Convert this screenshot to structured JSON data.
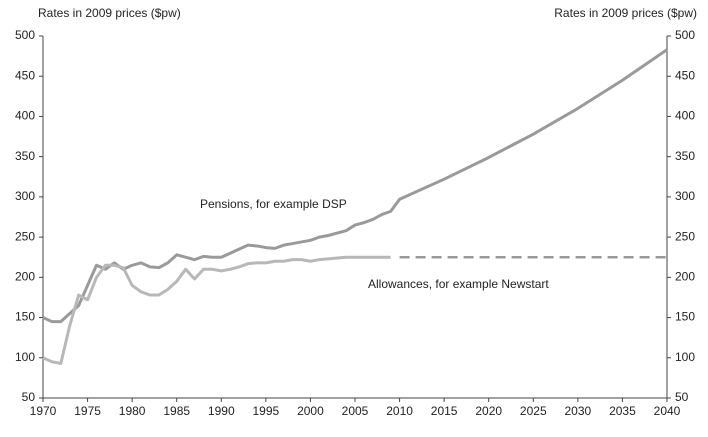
{
  "chart_data": {
    "type": "line",
    "ylabel": "Rates in 2009 prices ($pw)",
    "y2label": "Rates in 2009 prices ($pw)",
    "xlim": [
      1970,
      2040
    ],
    "xticks": [
      1970,
      1975,
      1980,
      1985,
      1990,
      1995,
      2000,
      2005,
      2010,
      2015,
      2020,
      2025,
      2030,
      2035,
      2040
    ],
    "ylim": [
      50,
      500
    ],
    "yticks": [
      50,
      100,
      150,
      200,
      250,
      300,
      350,
      400,
      450,
      500
    ],
    "y2lim": [
      50,
      500
    ],
    "y2ticks": [
      50,
      100,
      150,
      200,
      250,
      300,
      350,
      400,
      450,
      500
    ],
    "series": [
      {
        "name": "Pensions, for example DSP",
        "color": "#9a9a9a",
        "x": [
          1970,
          1971,
          1972,
          1973,
          1974,
          1975,
          1976,
          1977,
          1978,
          1979,
          1980,
          1981,
          1982,
          1983,
          1984,
          1985,
          1986,
          1987,
          1988,
          1989,
          1990,
          1991,
          1992,
          1993,
          1994,
          1995,
          1996,
          1997,
          1998,
          1999,
          2000,
          2001,
          2002,
          2003,
          2004,
          2005,
          2006,
          2007,
          2008,
          2009,
          2010,
          2015,
          2020,
          2025,
          2030,
          2035,
          2040
        ],
        "values": [
          150,
          145,
          145,
          155,
          165,
          190,
          215,
          210,
          218,
          210,
          215,
          218,
          213,
          212,
          218,
          228,
          225,
          222,
          226,
          225,
          225,
          230,
          235,
          240,
          239,
          237,
          236,
          240,
          242,
          244,
          246,
          250,
          252,
          255,
          258,
          265,
          268,
          272,
          278,
          282,
          297,
          322,
          349,
          378,
          410,
          445,
          483
        ]
      },
      {
        "name": "Allowances, for example Newstart",
        "color": "#b8b8b8",
        "x": [
          1970,
          1971,
          1972,
          1973,
          1974,
          1975,
          1976,
          1977,
          1978,
          1979,
          1980,
          1981,
          1982,
          1983,
          1984,
          1985,
          1986,
          1987,
          1988,
          1989,
          1990,
          1991,
          1992,
          1993,
          1994,
          1995,
          1996,
          1997,
          1998,
          1999,
          2000,
          2001,
          2002,
          2003,
          2004,
          2005,
          2006,
          2007,
          2008,
          2009
        ],
        "values": [
          100,
          95,
          93,
          140,
          178,
          172,
          200,
          215,
          215,
          212,
          190,
          182,
          178,
          178,
          185,
          195,
          210,
          198,
          210,
          210,
          208,
          210,
          213,
          217,
          218,
          218,
          220,
          220,
          222,
          222,
          220,
          222,
          223,
          224,
          225,
          225,
          225,
          225,
          225,
          225
        ]
      },
      {
        "color": "#999999",
        "dashed": true,
        "x": [
          2010,
          2040
        ],
        "values": [
          225,
          225
        ]
      }
    ]
  }
}
